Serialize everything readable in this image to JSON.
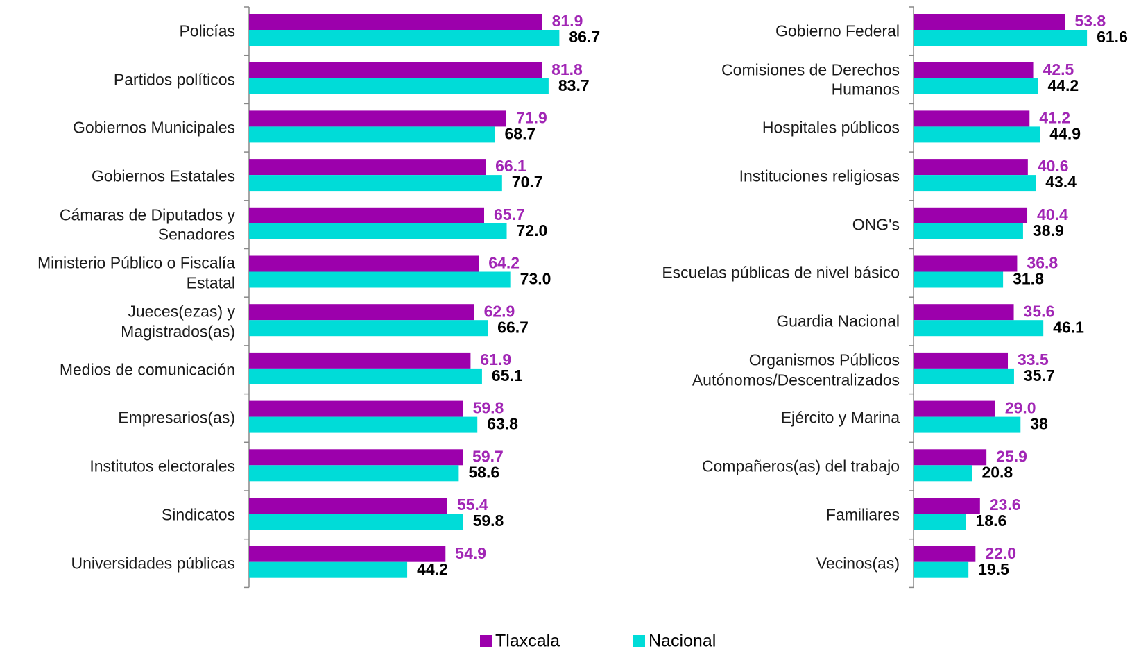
{
  "chart_data": [
    {
      "type": "bar",
      "orientation": "horizontal",
      "categories": [
        "Policías",
        "Partidos políticos",
        "Gobiernos Municipales",
        "Gobiernos Estatales",
        "Cámaras de Diputados y\nSenadores",
        "Ministerio Público o Fiscalía\nEstatal",
        "Jueces(ezas) y\nMagistrados(as)",
        "Medios de comunicación",
        "Empresarios(as)",
        "Institutos electorales",
        "Sindicatos",
        "Universidades públicas"
      ],
      "series": [
        {
          "name": "Tlaxcala",
          "color": "#9c00ac",
          "label_color": "#a126b5",
          "values": [
            81.9,
            81.8,
            71.9,
            66.1,
            65.7,
            64.2,
            62.9,
            61.9,
            59.8,
            59.7,
            55.4,
            54.9
          ]
        },
        {
          "name": "Nacional",
          "color": "#00dcd8",
          "label_color": "#000000",
          "values": [
            86.7,
            83.7,
            68.7,
            70.7,
            72.0,
            73.0,
            66.7,
            65.1,
            63.8,
            58.6,
            59.8,
            44.2
          ],
          "value_labels": [
            "86.7",
            "83.7",
            "68.7",
            "70.7",
            "72.0",
            "73.0",
            "66.7",
            "65.1",
            "63.8",
            "58.6",
            "59.8",
            "44.2"
          ]
        }
      ],
      "xlim": [
        0,
        100
      ]
    },
    {
      "type": "bar",
      "orientation": "horizontal",
      "categories": [
        "Gobierno Federal",
        "Comisiones de Derechos\nHumanos",
        "Hospitales públicos",
        "Instituciones religiosas",
        "ONG's",
        "Escuelas públicas de nivel básico",
        "Guardia Nacional",
        "Organismos Públicos\nAutónomos/Descentralizados",
        "Ejército y Marina",
        "Compañeros(as) del trabajo",
        "Familiares",
        "Vecinos(as)"
      ],
      "series": [
        {
          "color": "#9c00ac",
          "label_color": "#a126b5",
          "values": [
            53.8,
            42.5,
            41.2,
            40.6,
            40.4,
            36.8,
            35.6,
            33.5,
            29.0,
            25.9,
            23.6,
            22.0
          ],
          "value_labels": [
            "53.8",
            "42.5",
            "41.2",
            "40.6",
            "40.4",
            "36.8",
            "35.6",
            "33.5",
            "29.0",
            "25.9",
            "23.6",
            "22.0"
          ]
        },
        {
          "color": "#00dcd8",
          "label_color": "#000000",
          "values": [
            61.6,
            44.2,
            44.9,
            43.4,
            38.9,
            31.8,
            46.1,
            35.7,
            38.0,
            20.8,
            18.6,
            19.5
          ]
        }
      ],
      "xlim": [
        0,
        100
      ]
    }
  ]
}
